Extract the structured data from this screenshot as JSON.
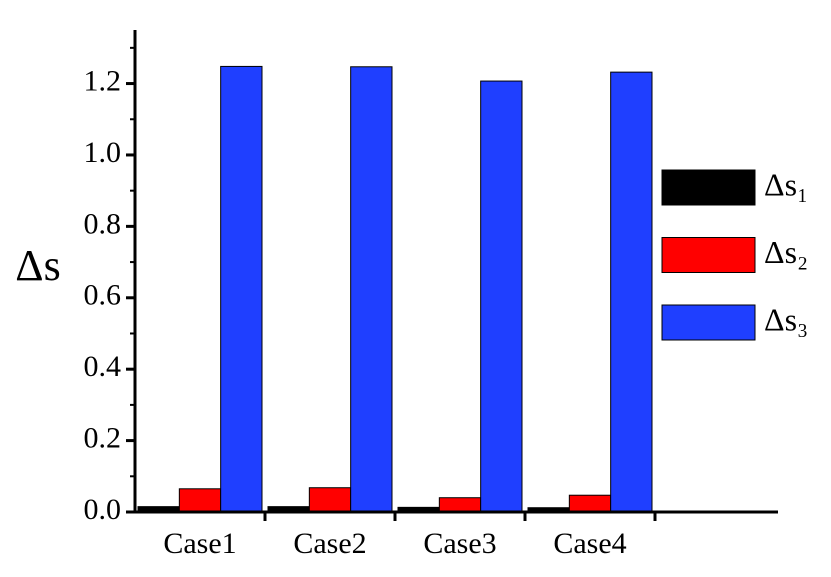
{
  "chart_data": {
    "type": "bar",
    "y_label": "Δs",
    "categories": [
      "Case1",
      "Case2",
      "Case3",
      "Case4"
    ],
    "series": [
      {
        "name": "Δs₁",
        "color": "#000000",
        "values": [
          0.015,
          0.015,
          0.013,
          0.012
        ]
      },
      {
        "name": "Δs₂",
        "color": "#ff0000",
        "values": [
          0.065,
          0.068,
          0.04,
          0.047
        ]
      },
      {
        "name": "Δs₃",
        "color": "#1f3fff",
        "values": [
          1.248,
          1.247,
          1.207,
          1.232
        ]
      }
    ],
    "ylim": [
      0,
      1.35
    ],
    "yticks": [
      {
        "value": 0,
        "label": "0.0"
      },
      0.2,
      0.4,
      0.6,
      0.8,
      {
        "value": 1,
        "label": "1.0"
      },
      1.2
    ],
    "legend": "right"
  }
}
